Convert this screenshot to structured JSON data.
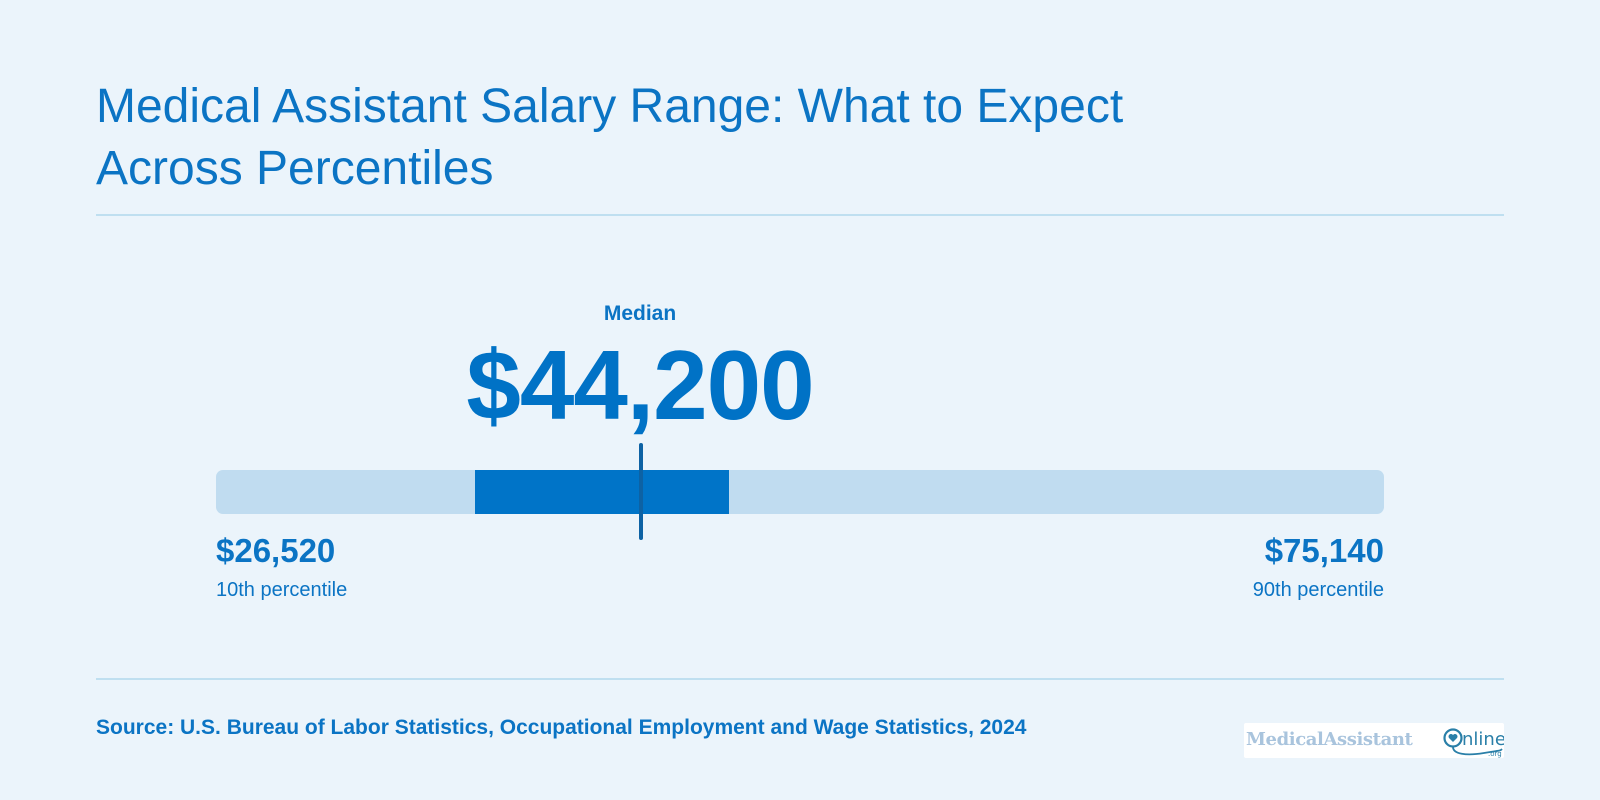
{
  "title": {
    "line1": "Medical Assistant Salary Range: What to Expect",
    "line2": "Across Percentiles"
  },
  "chart_data": {
    "type": "range",
    "title": "Medical Assistant Salary Range: What to Expect Across Percentiles",
    "xlim": [
      26520,
      75140
    ],
    "p10": {
      "value": 26520,
      "display": "$26,520",
      "label": "10th percentile"
    },
    "p25": 37310,
    "median": {
      "value": 44200,
      "display": "$44,200",
      "label": "Median"
    },
    "p75": 47870,
    "p90": {
      "value": 75140,
      "display": "$75,140",
      "label": "90th percentile"
    },
    "colors": {
      "track": "#c0dcf0",
      "iqr_band": "#0074c8",
      "median_marker": "#0d62a4",
      "text": "#0b74c4"
    }
  },
  "footer": {
    "source": "Source: U.S. Bureau of Labor Statistics, Occupational Employment and Wage Statistics, 2024"
  },
  "logo": {
    "text_left": "MedicalAssistant",
    "text_right": "nline",
    "suffix": ".org",
    "icon": "heart-stethoscope-icon"
  }
}
